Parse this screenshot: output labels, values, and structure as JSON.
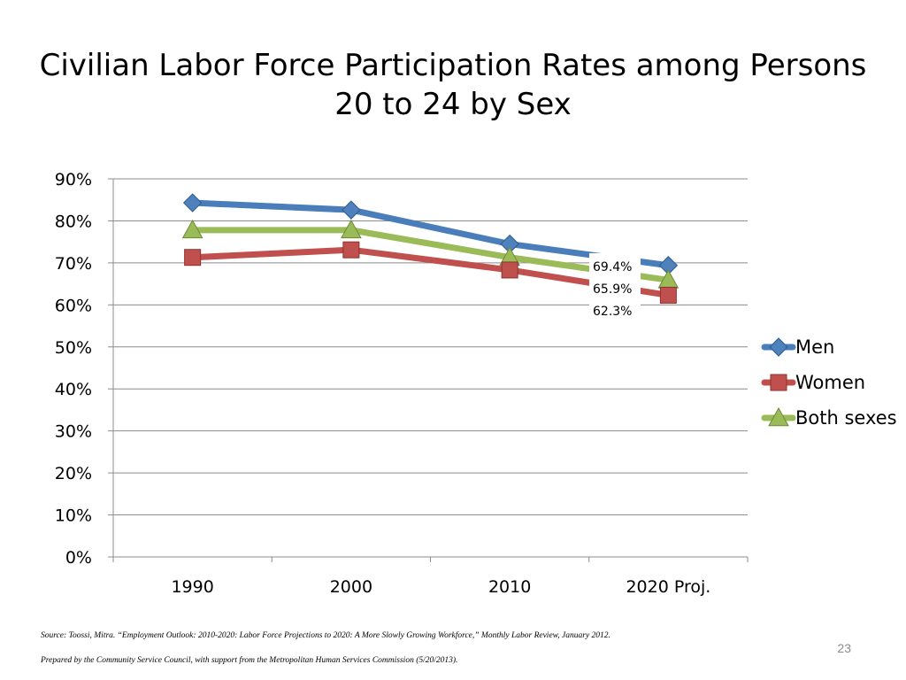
{
  "slide": {
    "title_line1": "Civilian Labor Force Participation Rates among Persons",
    "title_line2": "20 to 24 by Sex",
    "source": "Source:  Toossi, Mitra. “Employment Outlook: 2010-2020: Labor Force Projections to 2020: A More Slowly Growing Workforce,” Monthly Labor Review, January 2012.",
    "prepared_by": "Prepared by the Community Service Council, with support from the Metropolitan Human Services Commission (5/20/2013).",
    "page_number": "23"
  },
  "chart_data": {
    "type": "line",
    "title": "",
    "xlabel": "",
    "ylabel": "",
    "categories": [
      "1990",
      "2000",
      "2010",
      "2020 Proj."
    ],
    "ylim": [
      0,
      90
    ],
    "yticks": [
      0,
      10,
      20,
      30,
      40,
      50,
      60,
      70,
      80,
      90
    ],
    "ytick_labels": [
      "0%",
      "10%",
      "20%",
      "30%",
      "40%",
      "50%",
      "60%",
      "70%",
      "80%",
      "90%"
    ],
    "grid": true,
    "legend_position": "right",
    "series": [
      {
        "name": "Men",
        "values": [
          84.3,
          82.6,
          74.5,
          69.4
        ],
        "color": "#4a7ebb",
        "marker": "diamond",
        "marker_color": "#4f81bd"
      },
      {
        "name": "Women",
        "values": [
          71.3,
          73.1,
          68.3,
          62.3
        ],
        "color": "#c0504d",
        "marker": "square",
        "marker_color": "#c0504d"
      },
      {
        "name": "Both sexes",
        "values": [
          77.8,
          77.8,
          71.3,
          65.9
        ],
        "color": "#9bbb59",
        "marker": "triangle",
        "marker_color": "#9bbb59"
      }
    ],
    "data_labels": [
      "69.4%",
      "65.9%",
      "62.3%"
    ]
  }
}
